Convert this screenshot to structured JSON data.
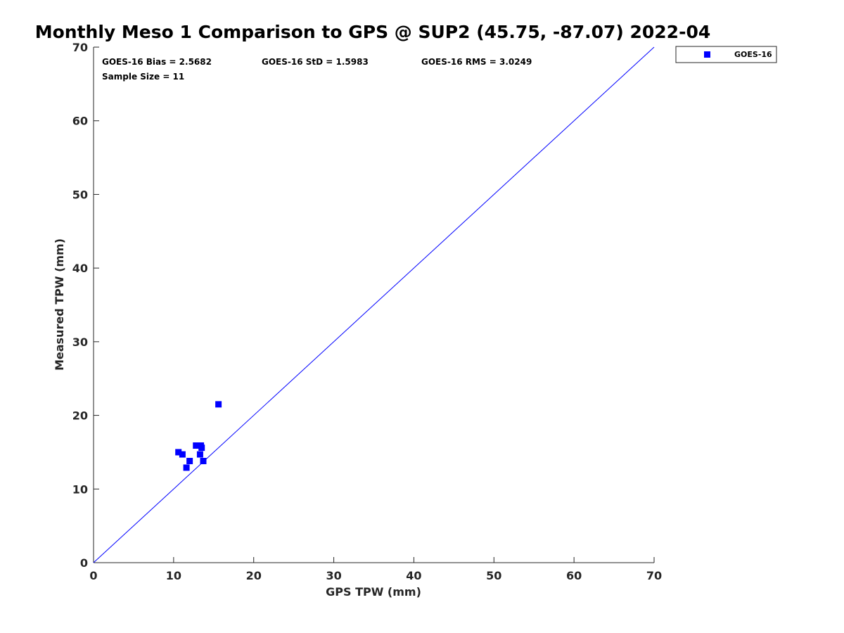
{
  "chart_data": {
    "type": "scatter",
    "title": "Monthly Meso 1 Comparison to GPS @ SUP2 (45.75, -87.07) 2022-04",
    "xlabel": "GPS TPW (mm)",
    "ylabel": "Measured TPW (mm)",
    "xlim": [
      0,
      70
    ],
    "ylim": [
      0,
      70
    ],
    "xticks": [
      "0",
      "10",
      "20",
      "30",
      "40",
      "50",
      "60",
      "70"
    ],
    "yticks": [
      "0",
      "10",
      "20",
      "30",
      "40",
      "50",
      "60",
      "70"
    ],
    "grid": false,
    "legend_position": "top-right outside",
    "reference_line": {
      "type": "one-to-one",
      "from": [
        0,
        0
      ],
      "to": [
        70,
        70
      ],
      "color": "#0000ff"
    },
    "annotations": {
      "bias": "GOES-16 Bias = 2.5682",
      "std": "GOES-16 StD = 1.5983",
      "rms": "GOES-16 RMS = 3.0249",
      "sample_size": "Sample Size = 11"
    },
    "series": [
      {
        "name": "GOES-16",
        "color": "#0000ff",
        "marker": "square",
        "x": [
          10.6,
          11.1,
          11.6,
          12.0,
          12.8,
          13.1,
          13.3,
          13.4,
          13.5,
          13.7,
          15.6
        ],
        "y": [
          15.0,
          14.7,
          12.9,
          13.8,
          15.9,
          15.9,
          14.7,
          15.9,
          15.6,
          13.8,
          21.5
        ]
      }
    ]
  }
}
